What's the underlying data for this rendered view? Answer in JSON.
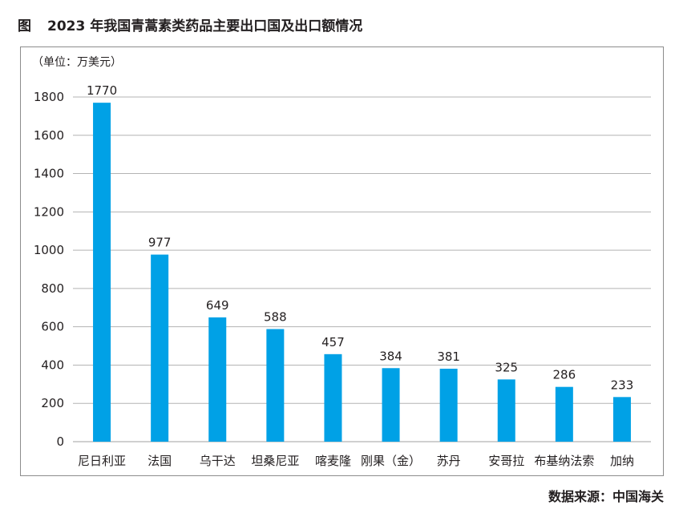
{
  "figure": {
    "label": "图",
    "title": "2023 年我国青蒿素类药品主要出口国及出口额情况",
    "unit": "（单位：万美元）",
    "source": "数据来源：中国海关"
  },
  "colors": {
    "bar": "#00a1e6",
    "grid": "#b3b3b3",
    "text": "#231f20"
  },
  "chart_data": {
    "type": "bar",
    "categories": [
      "尼日利亚",
      "法国",
      "乌干达",
      "坦桑尼亚",
      "喀麦隆",
      "刚果（金）",
      "苏丹",
      "安哥拉",
      "布基纳法索",
      "加纳"
    ],
    "values": [
      1770,
      977,
      649,
      588,
      457,
      384,
      381,
      325,
      286,
      233
    ],
    "ylim": [
      0,
      1800
    ],
    "yticks": [
      0,
      200,
      400,
      600,
      800,
      1000,
      1200,
      1400,
      1600,
      1800
    ],
    "grid": true,
    "data_labels": true,
    "legend": "none"
  }
}
